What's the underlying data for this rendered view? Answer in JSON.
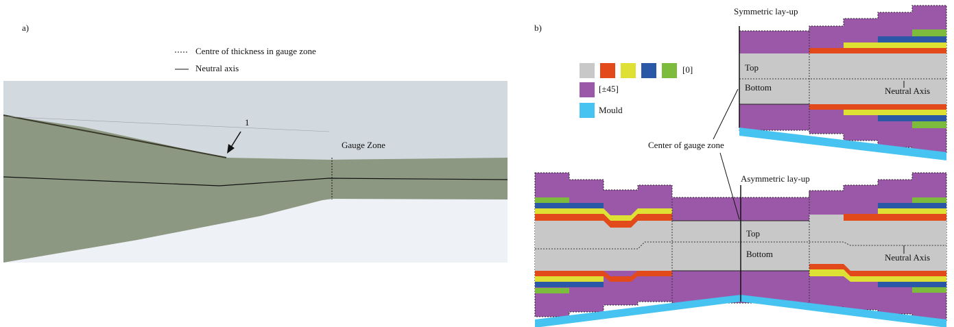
{
  "panel_a": {
    "label": "a)",
    "legend": [
      "Centre of  thickness in gauge zone",
      "Neutral axis"
    ],
    "annotation": "1",
    "zone_label": "Gauge Zone"
  },
  "panel_b": {
    "label": "b)",
    "legend": {
      "zero": "[0]",
      "pm45": "[±45]",
      "mould": "Mould"
    },
    "symmetric": {
      "title": "Symmetric lay-up",
      "top": "Top",
      "bottom": "Bottom",
      "neutral_axis": "Neutral Axis"
    },
    "center_label": "Center of gauge zone",
    "asymmetric": {
      "title": "Asymmetric lay-up",
      "top": "Top",
      "bottom": "Bottom",
      "neutral_axis": "Neutral Axis"
    }
  }
}
